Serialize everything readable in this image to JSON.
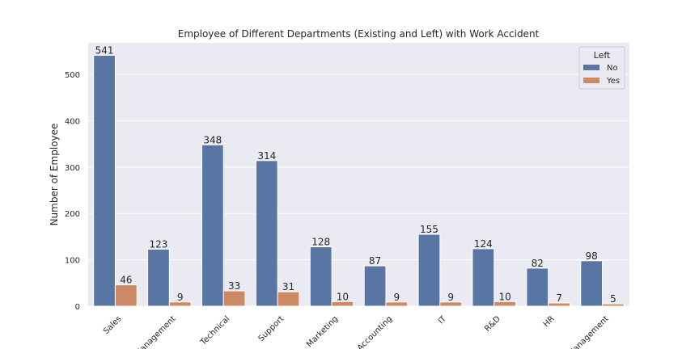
{
  "chart_data": {
    "type": "bar",
    "title": "Employee of Different Departments (Existing and Left) with Work Accident",
    "xlabel": "",
    "ylabel": "Number of Employee",
    "categories": [
      "Sales",
      "Management",
      "Technical",
      "Support",
      "Marketing",
      "Accounting",
      "IT",
      "R&D",
      "HR",
      "Management"
    ],
    "series": [
      {
        "name": "No",
        "values": [
          541,
          123,
          348,
          314,
          128,
          87,
          155,
          124,
          82,
          98
        ]
      },
      {
        "name": "Yes",
        "values": [
          46,
          9,
          33,
          31,
          10,
          9,
          9,
          10,
          7,
          5
        ]
      }
    ],
    "ylim": [
      0,
      568
    ],
    "yticks": [
      0,
      100,
      200,
      300,
      400,
      500
    ],
    "grid": true,
    "legend": {
      "title": "Left",
      "placement": "top-right"
    },
    "colors": {
      "No": "#5975a4",
      "Yes": "#cc8963",
      "background": "#eaeaf2",
      "grid": "#ffffff"
    }
  }
}
